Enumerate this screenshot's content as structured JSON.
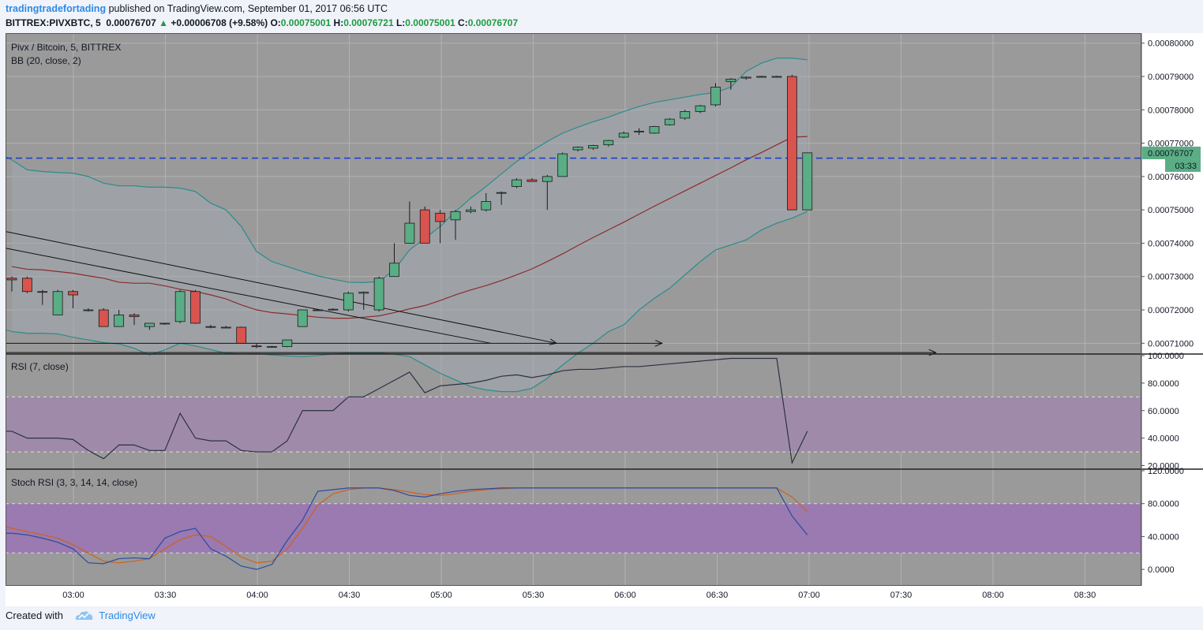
{
  "header": {
    "author": "tradingtradefortading",
    "published": "published on TradingView.com, September 01, 2017 06:56 UTC",
    "symbol": "BITTREX:PIVXBTC, 5",
    "last": "0.00076707",
    "up_arrow": "▲",
    "change": "+0.00006708 (+9.58%)",
    "o_label": "O:",
    "o": "0.00075001",
    "h_label": "H:",
    "h": "0.00076721",
    "l_label": "L:",
    "l": "0.00075001",
    "c_label": "C:",
    "c": "0.00076707"
  },
  "footer": {
    "created_with": "Created with",
    "brand": "TradingView"
  },
  "colors": {
    "bg": "#9a9a9a",
    "grid": "#b2b2b2",
    "up": "#5aad85",
    "down": "#d9534f",
    "bb_line": "#2a8c8c",
    "bb_mid": "#8b2c2c",
    "bb_fill": "#a2aab0",
    "rsi_line": "#2a3142",
    "rsi_band": "#a08aaa",
    "stoch_band": "#9a7ab0",
    "k_line": "#2d4aa0",
    "d_line": "#d0601a",
    "hline": "#1f3fd1",
    "axis_bg": "#ffffff"
  },
  "chart_data": [
    {
      "type": "candlestick",
      "title": "Pivx / Bitcoin, 5, BITTREX",
      "indicator_label": "BB (20, close, 2)",
      "ylim": [
        0.000707,
        0.000803
      ],
      "y_ticks": [
        "0.00080000",
        "0.00079000",
        "0.00078000",
        "0.00077000",
        "0.00076000",
        "0.00075000",
        "0.00074000",
        "0.00073000",
        "0.00072000",
        "0.00071000"
      ],
      "last_price_label": "0.00076707",
      "countdown_label": "03:33",
      "horizontal_line": 0.0007655,
      "candles": [
        {
          "o": 0.0007295,
          "h": 0.00073,
          "l": 0.0007255,
          "c": 0.000729
        },
        {
          "o": 0.0007295,
          "h": 0.00073,
          "l": 0.000725,
          "c": 0.0007255
        },
        {
          "o": 0.0007255,
          "h": 0.000726,
          "l": 0.0007215,
          "c": 0.0007253
        },
        {
          "o": 0.0007185,
          "h": 0.000726,
          "l": 0.0007185,
          "c": 0.0007255
        },
        {
          "o": 0.0007255,
          "h": 0.000726,
          "l": 0.0007205,
          "c": 0.0007245
        },
        {
          "o": 0.00072,
          "h": 0.0007205,
          "l": 0.0007195,
          "c": 0.00072
        },
        {
          "o": 0.00072,
          "h": 0.0007205,
          "l": 0.000715,
          "c": 0.000715
        },
        {
          "o": 0.000715,
          "h": 0.00072,
          "l": 0.000715,
          "c": 0.0007185
        },
        {
          "o": 0.0007185,
          "h": 0.000719,
          "l": 0.0007155,
          "c": 0.000718
        },
        {
          "o": 0.000715,
          "h": 0.000716,
          "l": 0.000714,
          "c": 0.000716
        },
        {
          "o": 0.000716,
          "h": 0.000716,
          "l": 0.0007155,
          "c": 0.0007158
        },
        {
          "o": 0.0007165,
          "h": 0.000726,
          "l": 0.000716,
          "c": 0.0007255
        },
        {
          "o": 0.0007255,
          "h": 0.000726,
          "l": 0.0007158,
          "c": 0.000716
        },
        {
          "o": 0.000715,
          "h": 0.0007155,
          "l": 0.0007145,
          "c": 0.000715
        },
        {
          "o": 0.0007148,
          "h": 0.0007152,
          "l": 0.0007145,
          "c": 0.0007148
        },
        {
          "o": 0.0007148,
          "h": 0.000715,
          "l": 0.00071,
          "c": 0.00071
        },
        {
          "o": 0.0007092,
          "h": 0.00071,
          "l": 0.0007085,
          "c": 0.000709
        },
        {
          "o": 0.000709,
          "h": 0.0007092,
          "l": 0.0007088,
          "c": 0.000709
        },
        {
          "o": 0.000709,
          "h": 0.000711,
          "l": 0.0007088,
          "c": 0.000711
        },
        {
          "o": 0.000715,
          "h": 0.00072,
          "l": 0.000715,
          "c": 0.00072
        },
        {
          "o": 0.00072,
          "h": 0.0007202,
          "l": 0.0007198,
          "c": 0.00072
        },
        {
          "o": 0.00072,
          "h": 0.0007205,
          "l": 0.0007198,
          "c": 0.0007202
        },
        {
          "o": 0.00072,
          "h": 0.0007255,
          "l": 0.0007195,
          "c": 0.000725
        },
        {
          "o": 0.000725,
          "h": 0.0007255,
          "l": 0.00072,
          "c": 0.0007253
        },
        {
          "o": 0.00072,
          "h": 0.00073,
          "l": 0.0007195,
          "c": 0.0007295
        },
        {
          "o": 0.00073,
          "h": 0.00074,
          "l": 0.00073,
          "c": 0.000734
        },
        {
          "o": 0.00074,
          "h": 0.0007525,
          "l": 0.00074,
          "c": 0.000746
        },
        {
          "o": 0.00075,
          "h": 0.000751,
          "l": 0.00074,
          "c": 0.00074
        },
        {
          "o": 0.000749,
          "h": 0.00075,
          "l": 0.00074,
          "c": 0.0007465
        },
        {
          "o": 0.000747,
          "h": 0.00075,
          "l": 0.000741,
          "c": 0.0007495
        },
        {
          "o": 0.0007495,
          "h": 0.000751,
          "l": 0.000749,
          "c": 0.00075
        },
        {
          "o": 0.00075,
          "h": 0.000755,
          "l": 0.0007495,
          "c": 0.0007525
        },
        {
          "o": 0.000755,
          "h": 0.0007555,
          "l": 0.0007515,
          "c": 0.0007552
        },
        {
          "o": 0.000757,
          "h": 0.0007595,
          "l": 0.0007565,
          "c": 0.000759
        },
        {
          "o": 0.000759,
          "h": 0.0007595,
          "l": 0.0007585,
          "c": 0.0007585
        },
        {
          "o": 0.0007585,
          "h": 0.0007605,
          "l": 0.00075,
          "c": 0.00076
        },
        {
          "o": 0.00076,
          "h": 0.0007672,
          "l": 0.00076,
          "c": 0.0007668
        },
        {
          "o": 0.000768,
          "h": 0.000769,
          "l": 0.0007675,
          "c": 0.0007688
        },
        {
          "o": 0.0007685,
          "h": 0.0007695,
          "l": 0.000768,
          "c": 0.0007693
        },
        {
          "o": 0.0007695,
          "h": 0.000771,
          "l": 0.000769,
          "c": 0.0007708
        },
        {
          "o": 0.0007718,
          "h": 0.0007735,
          "l": 0.0007715,
          "c": 0.000773
        },
        {
          "o": 0.0007735,
          "h": 0.0007745,
          "l": 0.0007725,
          "c": 0.0007736
        },
        {
          "o": 0.000773,
          "h": 0.0007752,
          "l": 0.0007728,
          "c": 0.000775
        },
        {
          "o": 0.0007755,
          "h": 0.0007775,
          "l": 0.0007753,
          "c": 0.0007772
        },
        {
          "o": 0.0007775,
          "h": 0.00078,
          "l": 0.000777,
          "c": 0.0007795
        },
        {
          "o": 0.0007795,
          "h": 0.0007815,
          "l": 0.000779,
          "c": 0.0007812
        },
        {
          "o": 0.0007815,
          "h": 0.000788,
          "l": 0.000781,
          "c": 0.0007868
        },
        {
          "o": 0.0007885,
          "h": 0.0007895,
          "l": 0.000786,
          "c": 0.0007892
        },
        {
          "o": 0.0007895,
          "h": 0.00079,
          "l": 0.000789,
          "c": 0.0007898
        },
        {
          "o": 0.00079,
          "h": 0.0007902,
          "l": 0.0007898,
          "c": 0.00079
        },
        {
          "o": 0.00079,
          "h": 0.0007902,
          "l": 0.0007898,
          "c": 0.00079
        },
        {
          "o": 0.00079,
          "h": 0.0007905,
          "l": 0.00075,
          "c": 0.00075
        },
        {
          "o": 0.00075,
          "h": 0.0007672,
          "l": 0.00075,
          "c": 0.0007671
        }
      ],
      "bb_upper": [
        0.000765,
        0.000762,
        0.0007615,
        0.0007612,
        0.000761,
        0.00076,
        0.000758,
        0.0007572,
        0.0007572,
        0.0007568,
        0.0007568,
        0.0007565,
        0.0007555,
        0.000752,
        0.00075,
        0.000745,
        0.0007375,
        0.0007345,
        0.000733,
        0.0007315,
        0.0007302,
        0.0007292,
        0.0007283,
        0.0007282,
        0.0007285,
        0.000732,
        0.000738,
        0.0007415,
        0.000745,
        0.0007495,
        0.0007535,
        0.000757,
        0.0007608,
        0.0007645,
        0.0007677,
        0.0007705,
        0.000773,
        0.0007748,
        0.0007764,
        0.0007778,
        0.0007795,
        0.000781,
        0.0007822,
        0.000783,
        0.0007838,
        0.0007846,
        0.0007852,
        0.0007868,
        0.0007915,
        0.000794,
        0.0007955,
        0.0007955,
        0.000795
      ],
      "bb_mid": [
        0.000733,
        0.0007322,
        0.000732,
        0.0007315,
        0.000731,
        0.0007302,
        0.0007295,
        0.0007283,
        0.000728,
        0.000728,
        0.0007272,
        0.0007262,
        0.0007255,
        0.0007245,
        0.0007233,
        0.0007215,
        0.00072,
        0.0007192,
        0.0007188,
        0.0007183,
        0.0007178,
        0.0007175,
        0.0007175,
        0.0007178,
        0.0007182,
        0.0007192,
        0.0007203,
        0.0007213,
        0.0007228,
        0.0007245,
        0.000726,
        0.0007273,
        0.0007288,
        0.0007305,
        0.0007323,
        0.0007345,
        0.0007368,
        0.0007393,
        0.0007417,
        0.000744,
        0.0007463,
        0.0007487,
        0.0007511,
        0.0007534,
        0.0007557,
        0.000758,
        0.0007603,
        0.0007626,
        0.000765,
        0.0007672,
        0.0007695,
        0.0007718,
        0.000772
      ],
      "bb_lower": [
        0.0007135,
        0.000713,
        0.000713,
        0.0007128,
        0.0007118,
        0.000711,
        0.0007102,
        0.0007098,
        0.0007085,
        0.0007065,
        0.000708,
        0.00071,
        0.0007092,
        0.0007081,
        0.000707,
        0.0007068,
        0.0007069,
        0.0007065,
        0.0007062,
        0.000706,
        0.0007063,
        0.0007068,
        0.000707,
        0.0007071,
        0.000707,
        0.0007067,
        0.000706,
        0.0007035,
        0.000701,
        0.000699,
        0.000697,
        0.000696,
        0.0006955,
        0.0006955,
        0.0006965,
        0.0006995,
        0.0007035,
        0.000707,
        0.00071,
        0.0007135,
        0.0007155,
        0.00072,
        0.0007235,
        0.0007265,
        0.0007305,
        0.0007345,
        0.000738,
        0.0007395,
        0.000741,
        0.000744,
        0.000746,
        0.0007475,
        0.0007495
      ],
      "trend_lines": [
        {
          "from": [
            0.0,
            0.0007435
          ],
          "to": [
            35.6,
            0.00071
          ],
          "arrow": true
        },
        {
          "from": [
            0.0,
            0.0007385
          ],
          "to": [
            31.3,
            0.00071
          ],
          "arrow": false
        },
        {
          "from": [
            0.0,
            0.00071
          ],
          "to": [
            42.5,
            0.00071
          ],
          "arrow": true
        },
        {
          "from": [
            0.0,
            0.0007072
          ],
          "to": [
            60.4,
            0.0007072
          ],
          "arrow": true
        }
      ]
    },
    {
      "type": "line",
      "title": "RSI (7, close)",
      "ylim": [
        18.0,
        100.0
      ],
      "y_ticks": [
        "100.0000",
        "80.0000",
        "60.0000",
        "40.0000",
        "20.0000"
      ],
      "band": [
        30,
        70
      ],
      "values": [
        45,
        40,
        40,
        40,
        39,
        31,
        25,
        35,
        35,
        31,
        31,
        58,
        40,
        38,
        38,
        31,
        30,
        30,
        38,
        60,
        60,
        60,
        70,
        70,
        76,
        82,
        88,
        73,
        78,
        79,
        80,
        82,
        85,
        86,
        84,
        86,
        89,
        90,
        90,
        91,
        92,
        92,
        93,
        94,
        95,
        96,
        97,
        98,
        98,
        98,
        98,
        22,
        45
      ]
    },
    {
      "type": "line",
      "title": "Stoch RSI (3, 3, 14, 14, close)",
      "ylim": [
        -20.0,
        120.0
      ],
      "y_ticks": [
        "120.0000",
        "80.0000",
        "40.0000",
        "0.0000"
      ],
      "band": [
        20,
        80
      ],
      "k_values": [
        44,
        42,
        38,
        33,
        25,
        8,
        7,
        13,
        14,
        13,
        38,
        46,
        50,
        25,
        16,
        4,
        0,
        6,
        35,
        60,
        95,
        97,
        99,
        99,
        99,
        96,
        90,
        88,
        92,
        95,
        97,
        98,
        99,
        99,
        99,
        99,
        99,
        99,
        99,
        99,
        99,
        99,
        99,
        99,
        99,
        99,
        99,
        99,
        99,
        99,
        99,
        65,
        42
      ],
      "d_values": [
        50,
        46,
        42,
        38,
        30,
        20,
        10,
        8,
        10,
        13,
        25,
        36,
        42,
        40,
        28,
        15,
        8,
        10,
        25,
        50,
        78,
        92,
        97,
        99,
        99,
        97,
        94,
        91,
        90,
        92,
        95,
        97,
        98,
        99,
        99,
        99,
        99,
        99,
        99,
        99,
        99,
        99,
        99,
        99,
        99,
        99,
        99,
        99,
        99,
        99,
        99,
        88,
        70
      ]
    },
    {
      "type": "time_axis",
      "x_ticks": [
        "03:00",
        "03:30",
        "04:00",
        "04:30",
        "05:00",
        "05:30",
        "06:00",
        "06:30",
        "07:00",
        "07:30",
        "08:00",
        "08:30"
      ]
    }
  ]
}
